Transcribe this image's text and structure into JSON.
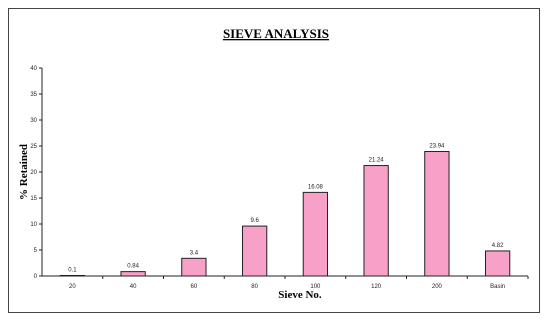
{
  "chart_data": {
    "type": "bar",
    "title": "SIEVE ANALYSIS",
    "xlabel": "Sieve No.",
    "ylabel": "% Retained",
    "categories": [
      "20",
      "40",
      "60",
      "80",
      "100",
      "120",
      "200",
      "Basin"
    ],
    "values": [
      0.1,
      0.84,
      3.4,
      9.6,
      16.08,
      21.24,
      23.94,
      4.82
    ],
    "data_labels": [
      "0.1",
      "0.84",
      "3.4",
      "9.6",
      "16.08",
      "21.24",
      "23.94",
      "4.82"
    ],
    "ylim": [
      0,
      40
    ],
    "yticks": [
      0,
      5,
      10,
      15,
      20,
      25,
      30,
      35,
      40
    ],
    "grid": false,
    "legend": "none",
    "bar_color": "#f7a1c8",
    "bar_edge_color": "#222222"
  }
}
